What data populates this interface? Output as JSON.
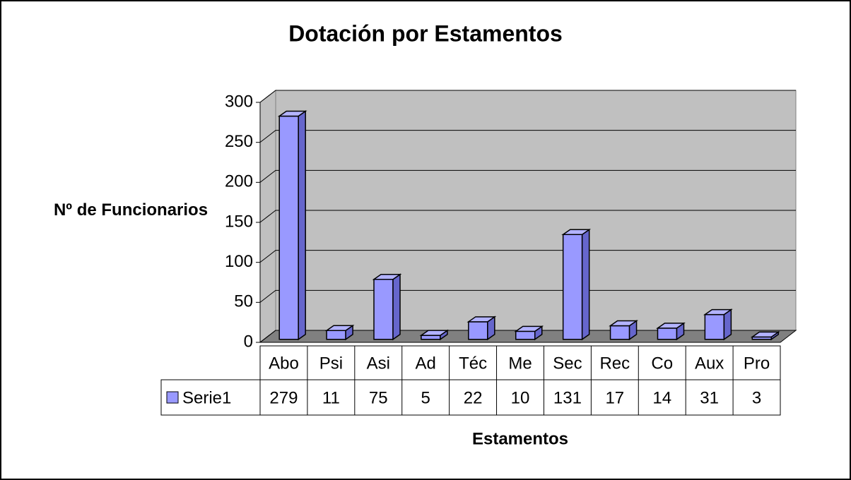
{
  "chart_data": {
    "type": "bar3d",
    "title": "Dotación por Estamentos",
    "y_label": "Nº de Funcionarios",
    "x_label": "Estamentos",
    "categories": [
      "Abo",
      "Psi",
      "Asi",
      "Ad",
      "Téc",
      "Me",
      "Sec",
      "Rec",
      "Co",
      "Aux",
      "Pro"
    ],
    "series": [
      {
        "name": "Serie1",
        "color": "#9999ff",
        "values": [
          279,
          11,
          75,
          5,
          22,
          10,
          131,
          17,
          14,
          31,
          3
        ]
      }
    ],
    "ylim": [
      0,
      300
    ],
    "yticks": [
      0,
      50,
      100,
      150,
      200,
      250,
      300
    ],
    "grid": true,
    "data_table": true
  }
}
